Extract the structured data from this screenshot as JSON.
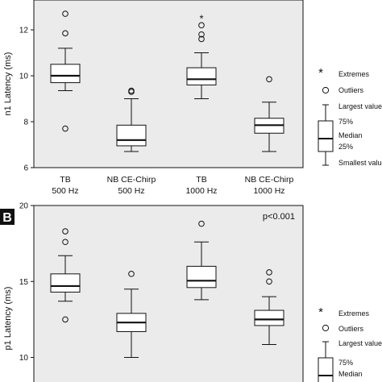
{
  "chart_data": [
    {
      "type": "box",
      "panel_label": "",
      "ylabel": "n1 Latency  (ms)",
      "ylim": [
        6,
        13.3
      ],
      "yticks": [
        6,
        8,
        10,
        12
      ],
      "annotation": "",
      "categories": [
        {
          "line1": "TB",
          "line2": "500 Hz"
        },
        {
          "line1": "NB CE-Chirp",
          "line2": "500 Hz"
        },
        {
          "line1": "TB",
          "line2": "1000 Hz"
        },
        {
          "line1": "NB CE-Chirp",
          "line2": "1000 Hz"
        }
      ],
      "boxes": [
        {
          "min": 9.35,
          "q1": 9.7,
          "median": 10.0,
          "q3": 10.5,
          "max": 11.2,
          "outliers": [
            11.85,
            12.7,
            7.7
          ],
          "extremes": []
        },
        {
          "min": 6.7,
          "q1": 6.95,
          "median": 7.2,
          "q3": 7.85,
          "max": 9.0,
          "outliers": [
            9.3,
            9.35
          ],
          "extremes": []
        },
        {
          "min": 9.0,
          "q1": 9.6,
          "median": 9.85,
          "q3": 10.35,
          "max": 11.0,
          "outliers": [
            11.6,
            11.8,
            12.2
          ],
          "extremes": [
            12.55
          ]
        },
        {
          "min": 6.7,
          "q1": 7.5,
          "median": 7.85,
          "q3": 8.15,
          "max": 8.85,
          "outliers": [
            9.85
          ],
          "extremes": []
        }
      ]
    },
    {
      "type": "box",
      "panel_label": "B",
      "ylabel": "p1 Latency  (ms)",
      "ylim": [
        7.8,
        20
      ],
      "yticks": [
        10,
        15,
        20
      ],
      "annotation": "p<0.001",
      "categories": [],
      "boxes": [
        {
          "min": 13.7,
          "q1": 14.3,
          "median": 14.7,
          "q3": 15.5,
          "max": 16.7,
          "outliers": [
            17.6,
            18.3,
            12.5
          ],
          "extremes": []
        },
        {
          "min": 10.0,
          "q1": 11.7,
          "median": 12.3,
          "q3": 12.9,
          "max": 14.5,
          "outliers": [
            15.5
          ],
          "extremes": []
        },
        {
          "min": 13.8,
          "q1": 14.6,
          "median": 15.05,
          "q3": 16.0,
          "max": 17.6,
          "outliers": [
            18.8
          ],
          "extremes": []
        },
        {
          "min": 10.85,
          "q1": 12.1,
          "median": 12.5,
          "q3": 13.1,
          "max": 14.0,
          "outliers": [
            15.0,
            15.6
          ],
          "extremes": []
        }
      ]
    }
  ],
  "legend": {
    "extremes_label": "Extremes",
    "outliers_label": "Outliers",
    "largest_label": "Largest value",
    "p75_label": "75%",
    "median_label": "Median",
    "p25_label": "25%",
    "smallest_label": "Smallest value"
  },
  "colors": {
    "plot_bg": "#ebebeb",
    "box_fill": "#ffffff",
    "line": "#111111"
  }
}
